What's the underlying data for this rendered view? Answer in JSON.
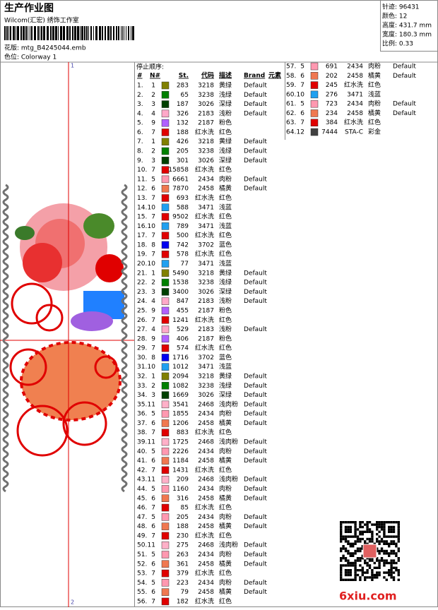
{
  "header": {
    "title": "生产作业图",
    "studio": "Wilcom(汇宏) 绣饰工作室",
    "design": "花版: mtg_B4245044.emb",
    "colorway": "色位: Colorway 1"
  },
  "info": [
    "针迹: 96431",
    "颜色: 12",
    "高度: 431.7 mm",
    "宽度: 180.3 mm",
    "比例: 0.33"
  ],
  "markers": [
    "1",
    "2"
  ],
  "table": {
    "caption": "停止顺序:",
    "columns": [
      "#",
      "N#",
      "St.",
      "代码",
      "描述",
      "Brand",
      "元素"
    ],
    "rows": [
      [
        "1.",
        "1",
        "#808000",
        "283",
        "3218",
        "黄绿",
        "Default"
      ],
      [
        "2.",
        "2",
        "#008000",
        "65",
        "3238",
        "浅绿",
        "Default"
      ],
      [
        "3.",
        "3",
        "#004000",
        "187",
        "3026",
        "深绿",
        "Default"
      ],
      [
        "4.",
        "4",
        "#ffa8c8",
        "326",
        "2183",
        "浅粉",
        "Default"
      ],
      [
        "5.",
        "9",
        "#b060ff",
        "132",
        "2187",
        "粉色",
        null
      ],
      [
        "6.",
        "7",
        "#e00000",
        "188",
        "红水洗",
        "红色",
        null
      ],
      [
        "7.",
        "1",
        "#808000",
        "426",
        "3218",
        "黄绿",
        "Default"
      ],
      [
        "8.",
        "2",
        "#008000",
        "205",
        "3238",
        "浅绿",
        "Default"
      ],
      [
        "9.",
        "3",
        "#004000",
        "301",
        "3026",
        "深绿",
        "Default"
      ],
      [
        "10.",
        "7",
        "#e00000",
        "15858",
        "红水洗",
        "红色",
        null
      ],
      [
        "11.",
        "5",
        "#ff98b0",
        "6661",
        "2434",
        "肉粉",
        "Default"
      ],
      [
        "12.",
        "6",
        "#f07850",
        "7870",
        "2458",
        "橘黄",
        "Default"
      ],
      [
        "13.",
        "7",
        "#e00000",
        "693",
        "红水洗",
        "红色",
        null
      ],
      [
        "14.",
        "10",
        "#20a0f0",
        "588",
        "3471",
        "浅蓝",
        null
      ],
      [
        "15.",
        "7",
        "#e00000",
        "9502",
        "红水洗",
        "红色",
        null
      ],
      [
        "16.",
        "10",
        "#20a0f0",
        "789",
        "3471",
        "浅蓝",
        null
      ],
      [
        "17.",
        "7",
        "#e00000",
        "500",
        "红水洗",
        "红色",
        null
      ],
      [
        "18.",
        "8",
        "#0000f0",
        "742",
        "3702",
        "蓝色",
        null
      ],
      [
        "19.",
        "7",
        "#e00000",
        "578",
        "红水洗",
        "红色",
        null
      ],
      [
        "20.",
        "10",
        "#20a0f0",
        "77",
        "3471",
        "浅蓝",
        null
      ],
      [
        "21.",
        "1",
        "#808000",
        "5490",
        "3218",
        "黄绿",
        "Default"
      ],
      [
        "22.",
        "2",
        "#008000",
        "1538",
        "3238",
        "浅绿",
        "Default"
      ],
      [
        "23.",
        "3",
        "#004000",
        "3400",
        "3026",
        "深绿",
        "Default"
      ],
      [
        "24.",
        "4",
        "#ffa8c8",
        "847",
        "2183",
        "浅粉",
        "Default"
      ],
      [
        "25.",
        "9",
        "#b060ff",
        "455",
        "2187",
        "粉色",
        null
      ],
      [
        "26.",
        "7",
        "#e00000",
        "1241",
        "红水洗",
        "红色",
        null
      ],
      [
        "27.",
        "4",
        "#ffa8c8",
        "529",
        "2183",
        "浅粉",
        "Default"
      ],
      [
        "28.",
        "9",
        "#b060ff",
        "406",
        "2187",
        "粉色",
        null
      ],
      [
        "29.",
        "7",
        "#e00000",
        "574",
        "红水洗",
        "红色",
        null
      ],
      [
        "30.",
        "8",
        "#0000f0",
        "1716",
        "3702",
        "蓝色",
        null
      ],
      [
        "31.",
        "10",
        "#20a0f0",
        "1012",
        "3471",
        "浅蓝",
        null
      ],
      [
        "32.",
        "1",
        "#808000",
        "2094",
        "3218",
        "黄绿",
        "Default"
      ],
      [
        "33.",
        "2",
        "#008000",
        "1082",
        "3238",
        "浅绿",
        "Default"
      ],
      [
        "34.",
        "3",
        "#004000",
        "1669",
        "3026",
        "深绿",
        "Default"
      ],
      [
        "35.",
        "11",
        "#ffb0c8",
        "3541",
        "2468",
        "浅肉粉",
        "Default"
      ],
      [
        "36.",
        "5",
        "#ff98b0",
        "1855",
        "2434",
        "肉粉",
        "Default"
      ],
      [
        "37.",
        "6",
        "#f07850",
        "1206",
        "2458",
        "橘黄",
        "Default"
      ],
      [
        "38.",
        "7",
        "#e00000",
        "883",
        "红水洗",
        "红色",
        null
      ],
      [
        "39.",
        "11",
        "#ffb0c8",
        "1725",
        "2468",
        "浅肉粉",
        "Default"
      ],
      [
        "40.",
        "5",
        "#ff98b0",
        "2226",
        "2434",
        "肉粉",
        "Default"
      ],
      [
        "41.",
        "6",
        "#f07850",
        "1184",
        "2458",
        "橘黄",
        "Default"
      ],
      [
        "42.",
        "7",
        "#e00000",
        "1431",
        "红水洗",
        "红色",
        null
      ],
      [
        "43.",
        "11",
        "#ffb0c8",
        "209",
        "2468",
        "浅肉粉",
        "Default"
      ],
      [
        "44.",
        "5",
        "#ff98b0",
        "1160",
        "2434",
        "肉粉",
        "Default"
      ],
      [
        "45.",
        "6",
        "#f07850",
        "316",
        "2458",
        "橘黄",
        "Default"
      ],
      [
        "46.",
        "7",
        "#e00000",
        "85",
        "红水洗",
        "红色",
        null
      ],
      [
        "47.",
        "5",
        "#ff98b0",
        "205",
        "2434",
        "肉粉",
        "Default"
      ],
      [
        "48.",
        "6",
        "#f07850",
        "188",
        "2458",
        "橘黄",
        "Default"
      ],
      [
        "49.",
        "7",
        "#e00000",
        "230",
        "红水洗",
        "红色",
        null
      ],
      [
        "50.",
        "11",
        "#ffb0c8",
        "275",
        "2468",
        "浅肉粉",
        "Default"
      ],
      [
        "51.",
        "5",
        "#ff98b0",
        "263",
        "2434",
        "肉粉",
        "Default"
      ],
      [
        "52.",
        "6",
        "#f07850",
        "361",
        "2458",
        "橘黄",
        "Default"
      ],
      [
        "53.",
        "7",
        "#e00000",
        "379",
        "红水洗",
        "红色",
        null
      ],
      [
        "54.",
        "5",
        "#ff98b0",
        "223",
        "2434",
        "肉粉",
        "Default"
      ],
      [
        "55.",
        "6",
        "#f07850",
        "79",
        "2458",
        "橘黄",
        "Default"
      ],
      [
        "56.",
        "7",
        "#e00000",
        "182",
        "红水洗",
        "红色",
        null
      ],
      [
        "57.",
        "5",
        "#ff98b0",
        "691",
        "2434",
        "肉粉",
        "Default"
      ],
      [
        "58.",
        "6",
        "#f07850",
        "202",
        "2458",
        "橘黄",
        "Default"
      ],
      [
        "59.",
        "7",
        "#e00000",
        "245",
        "红水洗",
        "红色",
        null
      ],
      [
        "60.",
        "10",
        "#20a0f0",
        "276",
        "3471",
        "浅蓝",
        null
      ],
      [
        "61.",
        "5",
        "#ff98b0",
        "723",
        "2434",
        "肉粉",
        "Default"
      ],
      [
        "62.",
        "6",
        "#f07850",
        "234",
        "2458",
        "橘黄",
        "Default"
      ],
      [
        "63.",
        "7",
        "#e00000",
        "384",
        "红水洗",
        "红色",
        null
      ],
      [
        "64.",
        "12",
        "#404040",
        "7444",
        "STA-C",
        "彩金",
        null
      ]
    ]
  },
  "watermark": "6xiu.com"
}
